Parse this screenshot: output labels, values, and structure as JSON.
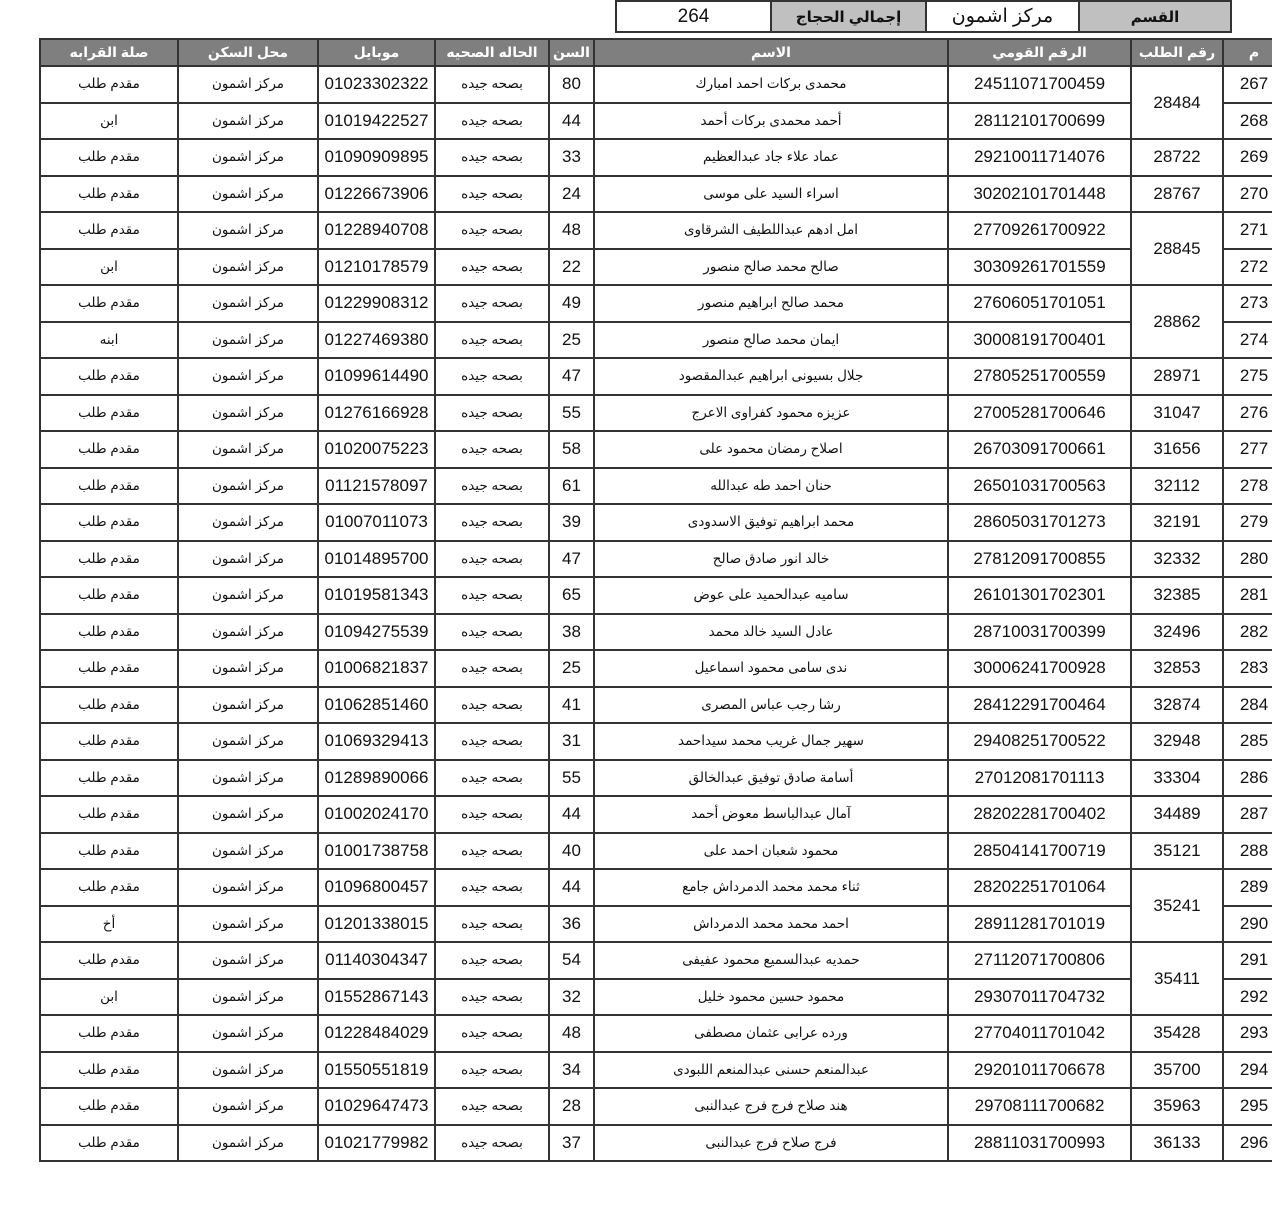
{
  "summary": {
    "section_label": "القسم",
    "section_value": "مركز اشمون",
    "total_label": "إجمالي الحجاج",
    "total_value": "264"
  },
  "table": {
    "headers": [
      "م",
      "رقم الطلب",
      "الرقم القومي",
      "الاسم",
      "السن",
      "الحاله الصحيه",
      "موبايل",
      "محل السكن",
      "صلة القرابه"
    ],
    "rows": [
      [
        "267",
        "28484",
        "24511071700459",
        "محمدى بركات احمد امبارك",
        "80",
        "بصحه جيده",
        "01023302322",
        "مركز اشمون",
        "مقدم طلب"
      ],
      [
        "268",
        "28484",
        "28112101700699",
        "أحمد محمدى بركات أحمد",
        "44",
        "بصحه جيده",
        "01019422527",
        "مركز اشمون",
        "ابن"
      ],
      [
        "269",
        "28722",
        "29210011714076",
        "عماد علاء جاد عبدالعظيم",
        "33",
        "بصحه جيده",
        "01090909895",
        "مركز اشمون",
        "مقدم طلب"
      ],
      [
        "270",
        "28767",
        "30202101701448",
        "اسراء السيد على موسى",
        "24",
        "بصحه جيده",
        "01226673906",
        "مركز اشمون",
        "مقدم طلب"
      ],
      [
        "271",
        "28845",
        "27709261700922",
        "امل ادهم عبداللطيف الشرقاوى",
        "48",
        "بصحه جيده",
        "01228940708",
        "مركز اشمون",
        "مقدم طلب"
      ],
      [
        "272",
        "28845",
        "30309261701559",
        "صالح محمد صالح منصور",
        "22",
        "بصحه جيده",
        "01210178579",
        "مركز اشمون",
        "ابن"
      ],
      [
        "273",
        "28862",
        "27606051701051",
        "محمد صالح ابراهيم منصور",
        "49",
        "بصحه جيده",
        "01229908312",
        "مركز اشمون",
        "مقدم طلب"
      ],
      [
        "274",
        "28862",
        "30008191700401",
        "ايمان محمد صالح منصور",
        "25",
        "بصحه جيده",
        "01227469380",
        "مركز اشمون",
        "ابنه"
      ],
      [
        "275",
        "28971",
        "27805251700559",
        "جلال بسيونى ابراهيم عبدالمقصود",
        "47",
        "بصحه جيده",
        "01099614490",
        "مركز اشمون",
        "مقدم طلب"
      ],
      [
        "276",
        "31047",
        "27005281700646",
        "عزيزه محمود كفراوى الاعرج",
        "55",
        "بصحه جيده",
        "01276166928",
        "مركز اشمون",
        "مقدم طلب"
      ],
      [
        "277",
        "31656",
        "26703091700661",
        "اصلاح رمضان محمود على",
        "58",
        "بصحه جيده",
        "01020075223",
        "مركز اشمون",
        "مقدم طلب"
      ],
      [
        "278",
        "32112",
        "26501031700563",
        "حنان احمد طه عبدالله",
        "61",
        "بصحه جيده",
        "01121578097",
        "مركز اشمون",
        "مقدم طلب"
      ],
      [
        "279",
        "32191",
        "28605031701273",
        "محمد ابراهيم توفيق الاسدودى",
        "39",
        "بصحه جيده",
        "01007011073",
        "مركز اشمون",
        "مقدم طلب"
      ],
      [
        "280",
        "32332",
        "27812091700855",
        "خالد انور صادق صالح",
        "47",
        "بصحه جيده",
        "01014895700",
        "مركز اشمون",
        "مقدم طلب"
      ],
      [
        "281",
        "32385",
        "26101301702301",
        "ساميه عبدالحميد على عوض",
        "65",
        "بصحه جيده",
        "01019581343",
        "مركز اشمون",
        "مقدم طلب"
      ],
      [
        "282",
        "32496",
        "28710031700399",
        "عادل السيد خالد محمد",
        "38",
        "بصحه جيده",
        "01094275539",
        "مركز اشمون",
        "مقدم طلب"
      ],
      [
        "283",
        "32853",
        "30006241700928",
        "ندى سامى محمود اسماعيل",
        "25",
        "بصحه جيده",
        "01006821837",
        "مركز اشمون",
        "مقدم طلب"
      ],
      [
        "284",
        "32874",
        "28412291700464",
        "رشا رجب عباس المصرى",
        "41",
        "بصحه جيده",
        "01062851460",
        "مركز اشمون",
        "مقدم طلب"
      ],
      [
        "285",
        "32948",
        "29408251700522",
        "سهير جمال غريب محمد سيداحمد",
        "31",
        "بصحه جيده",
        "01069329413",
        "مركز اشمون",
        "مقدم طلب"
      ],
      [
        "286",
        "33304",
        "27012081701113",
        "أسامة صادق توفيق عبدالخالق",
        "55",
        "بصحه جيده",
        "01289890066",
        "مركز اشمون",
        "مقدم طلب"
      ],
      [
        "287",
        "34489",
        "28202281700402",
        "آمال عبدالباسط معوض أحمد",
        "44",
        "بصحه جيده",
        "01002024170",
        "مركز اشمون",
        "مقدم طلب"
      ],
      [
        "288",
        "35121",
        "28504141700719",
        "محمود شعبان احمد على",
        "40",
        "بصحه جيده",
        "01001738758",
        "مركز اشمون",
        "مقدم طلب"
      ],
      [
        "289",
        "35241",
        "28202251701064",
        "ثناء محمد محمد الدمرداش جامع",
        "44",
        "بصحه جيده",
        "01096800457",
        "مركز اشمون",
        "مقدم طلب"
      ],
      [
        "290",
        "35241",
        "28911281701019",
        "احمد محمد محمد الدمرداش",
        "36",
        "بصحه جيده",
        "01201338015",
        "مركز اشمون",
        "أخ"
      ],
      [
        "291",
        "35411",
        "27112071700806",
        "حمديه عبدالسميع محمود عفيفى",
        "54",
        "بصحه جيده",
        "01140304347",
        "مركز اشمون",
        "مقدم طلب"
      ],
      [
        "292",
        "35411",
        "29307011704732",
        "محمود حسين محمود خليل",
        "32",
        "بصحه جيده",
        "01552867143",
        "مركز اشمون",
        "ابن"
      ],
      [
        "293",
        "35428",
        "27704011701042",
        "ورده عرابى عثمان مصطفى",
        "48",
        "بصحه جيده",
        "01228484029",
        "مركز اشمون",
        "مقدم طلب"
      ],
      [
        "294",
        "35700",
        "29201011706678",
        "عبدالمنعم حسنى عبدالمنعم اللبودى",
        "34",
        "بصحه جيده",
        "01550551819",
        "مركز اشمون",
        "مقدم طلب"
      ],
      [
        "295",
        "35963",
        "29708111700682",
        "هند صلاح فرج فرج عبدالنبى",
        "28",
        "بصحه جيده",
        "01029647473",
        "مركز اشمون",
        "مقدم طلب"
      ],
      [
        "296",
        "36133",
        "28811031700993",
        "فرج صلاح فرج عبدالنبى",
        "37",
        "بصحه جيده",
        "01021779982",
        "مركز اشمون",
        "مقدم طلب"
      ]
    ]
  }
}
